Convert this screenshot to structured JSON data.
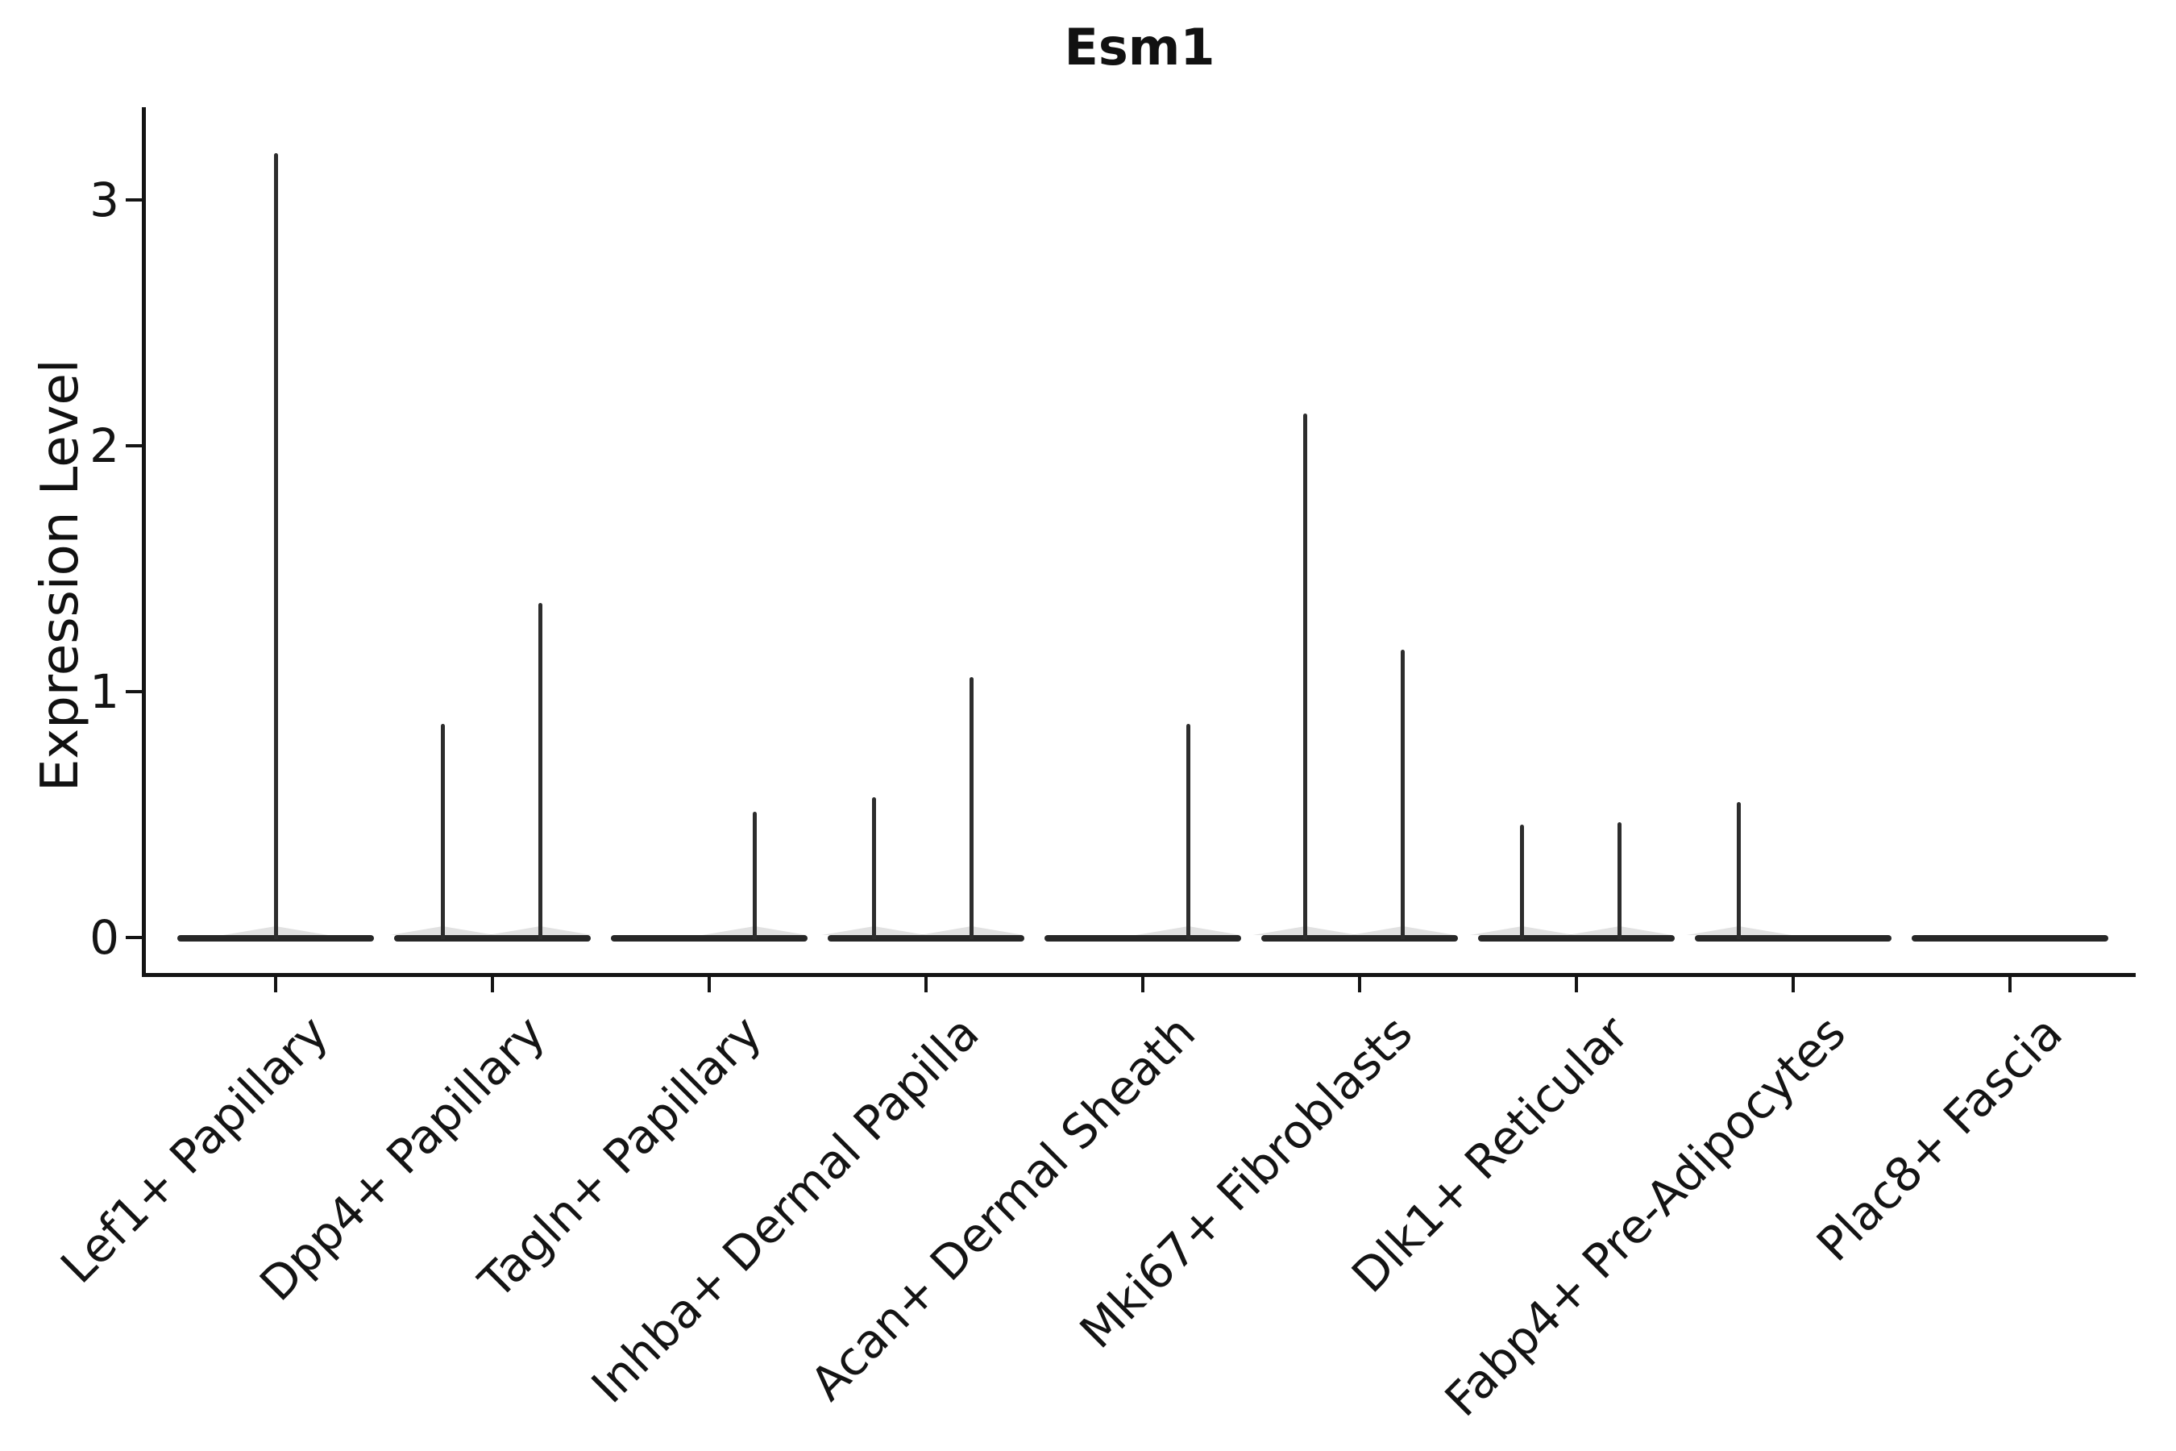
{
  "title": "Esm1",
  "ylabel": "Expression Level",
  "chart_data": {
    "type": "violin",
    "title": "Esm1",
    "xlabel": "",
    "ylabel": "Expression Level",
    "yticks": [
      0,
      1,
      2,
      3
    ],
    "ylim": [
      -0.15,
      3.37
    ],
    "grid": false,
    "legend": false,
    "description": "Single-cell expression violin plot; each cluster shows a flat density body at 0 with thin spikes up to the maximum expressing cells.",
    "categories": [
      "Lef1+ Papillary",
      "Dpp4+ Papillary",
      "Tagln+ Papillary",
      "Inhba+ Dermal Papilla",
      "Acan+ Dermal Sheath",
      "Mki67+ Fibroblasts",
      "Dlk1+ Reticular",
      "Fabp4+ Pre-Adipocytes",
      "Plac8+ Fascia"
    ],
    "series": [
      {
        "category": "Lef1+ Papillary",
        "baseline_value": 0,
        "spikes": [
          {
            "value": 3.19,
            "dx": 0.0
          }
        ]
      },
      {
        "category": "Dpp4+ Papillary",
        "baseline_value": 0,
        "spikes": [
          {
            "value": 0.87,
            "dx": -0.23
          },
          {
            "value": 1.36,
            "dx": 0.22
          }
        ]
      },
      {
        "category": "Tagln+ Papillary",
        "baseline_value": 0,
        "spikes": [
          {
            "value": 0.51,
            "dx": 0.21
          }
        ]
      },
      {
        "category": "Inhba+ Dermal Papilla",
        "baseline_value": 0,
        "spikes": [
          {
            "value": 0.57,
            "dx": -0.24
          },
          {
            "value": 1.06,
            "dx": 0.21
          }
        ]
      },
      {
        "category": "Acan+ Dermal Sheath",
        "baseline_value": 0,
        "spikes": [
          {
            "value": 0.87,
            "dx": 0.21
          }
        ]
      },
      {
        "category": "Mki67+ Fibroblasts",
        "baseline_value": 0,
        "spikes": [
          {
            "value": 2.13,
            "dx": -0.25
          },
          {
            "value": 1.17,
            "dx": 0.2
          }
        ]
      },
      {
        "category": "Dlk1+ Reticular",
        "baseline_value": 0,
        "spikes": [
          {
            "value": 0.46,
            "dx": -0.25
          },
          {
            "value": 0.47,
            "dx": 0.2
          }
        ]
      },
      {
        "category": "Fabp4+ Pre-Adipocytes",
        "baseline_value": 0,
        "spikes": [
          {
            "value": 0.55,
            "dx": -0.25
          }
        ]
      },
      {
        "category": "Plac8+ Fascia",
        "baseline_value": 0,
        "spikes": []
      }
    ],
    "colors": {
      "background": "#ffffff",
      "axis": "#141414",
      "text": "#111111",
      "violin": "#2d2d2d"
    }
  }
}
